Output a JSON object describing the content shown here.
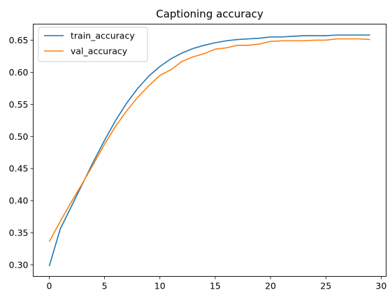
{
  "chart_data": {
    "type": "line",
    "title": "Captioning accuracy",
    "xlabel": "",
    "ylabel": "",
    "xlim": [
      -1.45,
      30.45
    ],
    "ylim": [
      0.282,
      0.675
    ],
    "xticks": [
      0,
      5,
      10,
      15,
      20,
      25,
      30
    ],
    "yticks": [
      0.3,
      0.35,
      0.4,
      0.45,
      0.5,
      0.55,
      0.6,
      0.65
    ],
    "legend_position": "top-left",
    "grid": false,
    "series": [
      {
        "name": "train_accuracy",
        "color": "#1f77b4",
        "x": [
          0,
          1,
          2,
          3,
          4,
          5,
          6,
          7,
          8,
          9,
          10,
          11,
          12,
          13,
          14,
          15,
          16,
          17,
          18,
          19,
          20,
          21,
          22,
          23,
          24,
          25,
          26,
          27,
          28,
          29
        ],
        "y": [
          0.298,
          0.356,
          0.391,
          0.426,
          0.461,
          0.494,
          0.525,
          0.552,
          0.575,
          0.594,
          0.609,
          0.621,
          0.63,
          0.637,
          0.642,
          0.646,
          0.649,
          0.651,
          0.652,
          0.653,
          0.655,
          0.655,
          0.656,
          0.657,
          0.657,
          0.657,
          0.658,
          0.658,
          0.658,
          0.658
        ]
      },
      {
        "name": "val_accuracy",
        "color": "#ff7f0e",
        "x": [
          0,
          1,
          2,
          3,
          4,
          5,
          6,
          7,
          8,
          9,
          10,
          11,
          12,
          13,
          14,
          15,
          16,
          17,
          18,
          19,
          20,
          21,
          22,
          23,
          24,
          25,
          26,
          27,
          28,
          29
        ],
        "y": [
          0.336,
          0.368,
          0.398,
          0.427,
          0.457,
          0.488,
          0.516,
          0.54,
          0.561,
          0.579,
          0.595,
          0.604,
          0.617,
          0.624,
          0.629,
          0.636,
          0.638,
          0.642,
          0.642,
          0.644,
          0.648,
          0.649,
          0.649,
          0.649,
          0.65,
          0.65,
          0.652,
          0.652,
          0.652,
          0.651
        ]
      }
    ]
  }
}
